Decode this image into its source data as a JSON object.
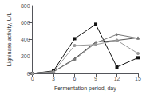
{
  "chart_data": {
    "type": "line",
    "x": [
      0,
      3,
      6,
      9,
      12,
      15
    ],
    "xlabel": "Fermentation period, day",
    "ylabel": "Ligninase activity, U/L",
    "xlim": [
      0,
      15
    ],
    "ylim": [
      0,
      800
    ],
    "xticks": [
      0,
      3,
      6,
      9,
      12,
      15
    ],
    "yticks": [
      0,
      200,
      400,
      600,
      800
    ],
    "grid": false,
    "series": [
      {
        "color": "#555555",
        "marker": "triangle",
        "values": [
          0,
          20,
          175,
          370,
          390,
          420
        ]
      },
      {
        "color": "#111111",
        "marker": "square",
        "values": [
          0,
          30,
          410,
          580,
          75,
          185
        ]
      },
      {
        "color": "#777777",
        "marker": "diamond",
        "values": [
          0,
          20,
          165,
          360,
          460,
          415
        ]
      },
      {
        "color": "#999999",
        "marker": "circle",
        "values": [
          0,
          20,
          330,
          340,
          390,
          235
        ]
      }
    ]
  }
}
